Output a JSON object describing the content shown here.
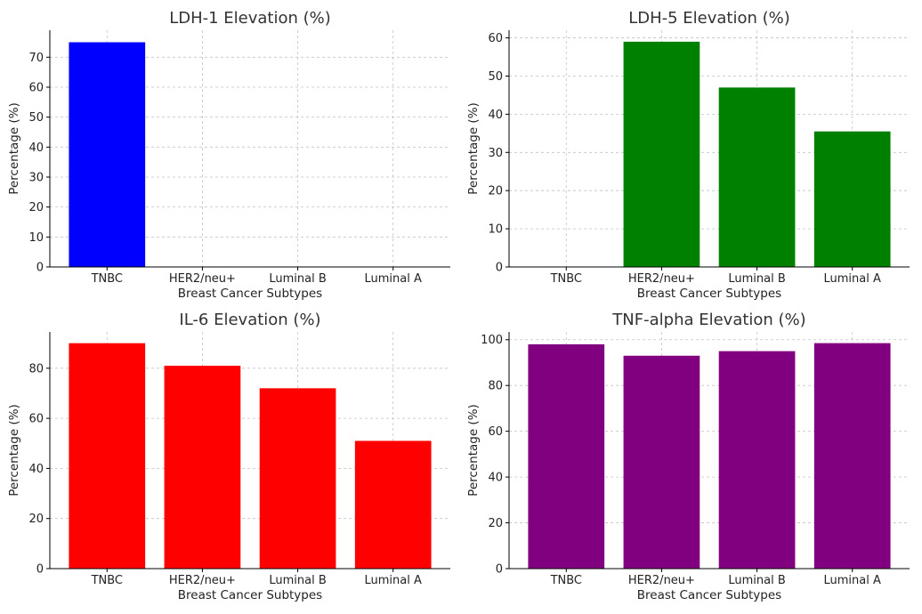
{
  "chart_data": [
    {
      "type": "bar",
      "title": "LDH-1 Elevation (%)",
      "xlabel": "Breast Cancer Subtypes",
      "ylabel": "Percentage (%)",
      "categories": [
        "TNBC",
        "HER2/neu+",
        "Luminal B",
        "Luminal A"
      ],
      "values": [
        75,
        0,
        0,
        0
      ],
      "color": "#0000ff",
      "ylim": [
        0,
        79
      ],
      "yticks": [
        0,
        10,
        20,
        30,
        40,
        50,
        60,
        70
      ],
      "grid": true
    },
    {
      "type": "bar",
      "title": "LDH-5 Elevation (%)",
      "xlabel": "Breast Cancer Subtypes",
      "ylabel": "Percentage (%)",
      "categories": [
        "TNBC",
        "HER2/neu+",
        "Luminal B",
        "Luminal A"
      ],
      "values": [
        0,
        59,
        47,
        35.5
      ],
      "color": "#008000",
      "ylim": [
        0,
        62
      ],
      "yticks": [
        0,
        10,
        20,
        30,
        40,
        50,
        60
      ],
      "grid": true
    },
    {
      "type": "bar",
      "title": "IL-6 Elevation (%)",
      "xlabel": "Breast Cancer Subtypes",
      "ylabel": "Percentage (%)",
      "categories": [
        "TNBC",
        "HER2/neu+",
        "Luminal B",
        "Luminal A"
      ],
      "values": [
        90,
        81,
        72,
        51
      ],
      "color": "#ff0000",
      "ylim": [
        0,
        94.5
      ],
      "yticks": [
        0,
        20,
        40,
        60,
        80
      ],
      "grid": true
    },
    {
      "type": "bar",
      "title": "TNF-alpha Elevation (%)",
      "xlabel": "Breast Cancer Subtypes",
      "ylabel": "Percentage (%)",
      "categories": [
        "TNBC",
        "HER2/neu+",
        "Luminal B",
        "Luminal A"
      ],
      "values": [
        98,
        93,
        95,
        98.5
      ],
      "color": "#800080",
      "ylim": [
        0,
        103.4
      ],
      "yticks": [
        0,
        20,
        40,
        60,
        80,
        100
      ],
      "grid": true
    }
  ]
}
